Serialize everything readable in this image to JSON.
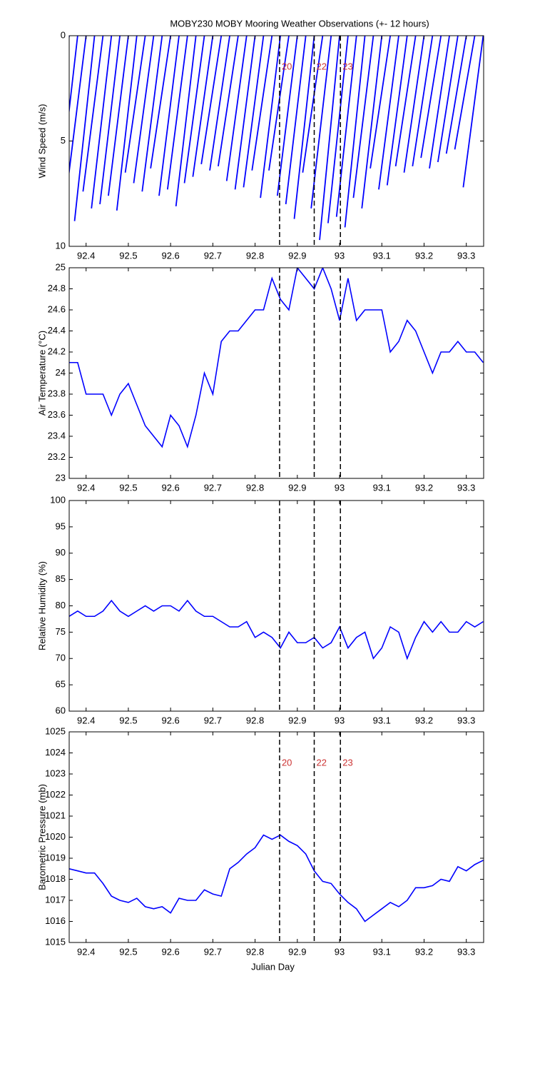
{
  "chart_data": [
    {
      "type": "stick",
      "title": "MOBY230 MOBY Mooring Weather Observations (+- 12 hours)",
      "ylabel": "Wind Speed (m/s)",
      "x": [
        92.36,
        92.38,
        92.4,
        92.42,
        92.44,
        92.46,
        92.48,
        92.5,
        92.52,
        92.54,
        92.56,
        92.58,
        92.6,
        92.62,
        92.64,
        92.66,
        92.68,
        92.7,
        92.72,
        92.74,
        92.76,
        92.78,
        92.8,
        92.82,
        92.84,
        92.86,
        92.88,
        92.9,
        92.92,
        92.94,
        92.96,
        92.98,
        93,
        93.02,
        93.04,
        93.06,
        93.08,
        93.1,
        93.12,
        93.14,
        93.16,
        93.18,
        93.2,
        93.22,
        93.24,
        93.26,
        93.28,
        93.3,
        93.32,
        93.34
      ],
      "values": [
        7.2,
        8.3,
        7.6,
        8.8,
        7.4,
        8.2,
        8.0,
        7.6,
        8.3,
        6.5,
        7.0,
        7.4,
        6.3,
        7.6,
        7.3,
        8.1,
        7.0,
        6.7,
        6.1,
        6.4,
        6.2,
        6.9,
        7.3,
        7.2,
        6.4,
        7.7,
        6.4,
        7.6,
        8.0,
        8.7,
        6.5,
        8.2,
        9.7,
        8.9,
        8.6,
        9.1,
        7.7,
        8.2,
        6.3,
        7.3,
        7.1,
        6.2,
        6.5,
        6.2,
        5.8,
        6.3,
        6.0,
        5.6,
        5.4,
        7.2
      ],
      "color": "#0000ff",
      "xlim": [
        92.36,
        93.341
      ],
      "xticks": [
        92.4,
        92.5,
        92.6,
        92.7,
        92.8,
        92.9,
        93,
        93.1,
        93.2,
        93.3
      ],
      "ylim": [
        0,
        10
      ],
      "yticks": [
        0,
        5,
        10
      ],
      "y_reversed": true,
      "vlines": [
        92.858,
        92.94,
        93.002
      ],
      "vline_labels": [
        "20",
        "22",
        "23"
      ],
      "vline_label_color": "#cc3333"
    },
    {
      "type": "line",
      "ylabel": "Air Temperature (°C)",
      "x": [
        92.36,
        92.38,
        92.4,
        92.42,
        92.44,
        92.46,
        92.48,
        92.5,
        92.52,
        92.54,
        92.56,
        92.58,
        92.6,
        92.62,
        92.64,
        92.66,
        92.68,
        92.7,
        92.72,
        92.74,
        92.76,
        92.78,
        92.8,
        92.82,
        92.84,
        92.86,
        92.88,
        92.9,
        92.92,
        92.94,
        92.96,
        92.98,
        93,
        93.02,
        93.04,
        93.06,
        93.08,
        93.1,
        93.12,
        93.14,
        93.16,
        93.18,
        93.2,
        93.22,
        93.24,
        93.26,
        93.28,
        93.3,
        93.32,
        93.34
      ],
      "values": [
        24.1,
        24.1,
        23.8,
        23.8,
        23.8,
        23.6,
        23.8,
        23.9,
        23.7,
        23.5,
        23.4,
        23.3,
        23.6,
        23.5,
        23.3,
        23.6,
        24.0,
        23.8,
        24.3,
        24.4,
        24.4,
        24.5,
        24.6,
        24.6,
        24.9,
        24.7,
        24.6,
        25.0,
        24.9,
        24.8,
        25.0,
        24.8,
        24.5,
        24.9,
        24.5,
        24.6,
        24.6,
        24.6,
        24.2,
        24.3,
        24.5,
        24.4,
        24.2,
        24.0,
        24.2,
        24.2,
        24.3,
        24.2,
        24.2,
        24.1
      ],
      "color": "#0000ff",
      "xlim": [
        92.36,
        93.341
      ],
      "xticks": [
        92.4,
        92.5,
        92.6,
        92.7,
        92.8,
        92.9,
        93,
        93.1,
        93.2,
        93.3
      ],
      "ylim": [
        23,
        25
      ],
      "yticks": [
        23,
        23.2,
        23.4,
        23.6,
        23.8,
        24,
        24.2,
        24.4,
        24.6,
        24.8,
        25
      ],
      "vlines": [
        92.858,
        92.94,
        93.002
      ]
    },
    {
      "type": "line",
      "ylabel": "Relative Humidity (%)",
      "x": [
        92.36,
        92.38,
        92.4,
        92.42,
        92.44,
        92.46,
        92.48,
        92.5,
        92.52,
        92.54,
        92.56,
        92.58,
        92.6,
        92.62,
        92.64,
        92.66,
        92.68,
        92.7,
        92.72,
        92.74,
        92.76,
        92.78,
        92.8,
        92.82,
        92.84,
        92.86,
        92.88,
        92.9,
        92.92,
        92.94,
        92.96,
        92.98,
        93,
        93.02,
        93.04,
        93.06,
        93.08,
        93.1,
        93.12,
        93.14,
        93.16,
        93.18,
        93.2,
        93.22,
        93.24,
        93.26,
        93.28,
        93.3,
        93.32,
        93.34
      ],
      "values": [
        78,
        79,
        78,
        78,
        79,
        81,
        79,
        78,
        79,
        80,
        79,
        80,
        80,
        79,
        81,
        79,
        78,
        78,
        77,
        76,
        76,
        77,
        74,
        75,
        74,
        72,
        75,
        73,
        73,
        74,
        72,
        73,
        76,
        72,
        74,
        75,
        70,
        72,
        76,
        75,
        70,
        74,
        77,
        75,
        77,
        75,
        75,
        77,
        76,
        77
      ],
      "color": "#0000ff",
      "xlim": [
        92.36,
        93.341
      ],
      "xticks": [
        92.4,
        92.5,
        92.6,
        92.7,
        92.8,
        92.9,
        93,
        93.1,
        93.2,
        93.3
      ],
      "ylim": [
        60,
        100
      ],
      "yticks": [
        60,
        65,
        70,
        75,
        80,
        85,
        90,
        95,
        100
      ],
      "vlines": [
        92.858,
        92.94,
        93.002
      ]
    },
    {
      "type": "line",
      "ylabel": "Barometric Pressure (mb)",
      "xlabel": "Julian Day",
      "x": [
        92.36,
        92.38,
        92.4,
        92.42,
        92.44,
        92.46,
        92.48,
        92.5,
        92.52,
        92.54,
        92.56,
        92.58,
        92.6,
        92.62,
        92.64,
        92.66,
        92.68,
        92.7,
        92.72,
        92.74,
        92.76,
        92.78,
        92.8,
        92.82,
        92.84,
        92.86,
        92.88,
        92.9,
        92.92,
        92.94,
        92.96,
        92.98,
        93,
        93.02,
        93.04,
        93.06,
        93.08,
        93.1,
        93.12,
        93.14,
        93.16,
        93.18,
        93.2,
        93.22,
        93.24,
        93.26,
        93.28,
        93.3,
        93.32,
        93.34
      ],
      "values": [
        1018.5,
        1018.4,
        1018.3,
        1018.3,
        1017.8,
        1017.2,
        1017.0,
        1016.9,
        1017.1,
        1016.7,
        1016.6,
        1016.7,
        1016.4,
        1017.1,
        1017.0,
        1017.0,
        1017.5,
        1017.3,
        1017.2,
        1018.5,
        1018.8,
        1019.2,
        1019.5,
        1020.1,
        1019.9,
        1020.1,
        1019.8,
        1019.6,
        1019.2,
        1018.4,
        1017.9,
        1017.8,
        1017.3,
        1016.9,
        1016.6,
        1016.0,
        1016.3,
        1016.6,
        1016.9,
        1016.7,
        1017.0,
        1017.6,
        1017.6,
        1017.7,
        1018.0,
        1017.9,
        1018.6,
        1018.4,
        1018.7,
        1018.9
      ],
      "color": "#0000ff",
      "xlim": [
        92.36,
        93.341
      ],
      "xticks": [
        92.4,
        92.5,
        92.6,
        92.7,
        92.8,
        92.9,
        93,
        93.1,
        93.2,
        93.3
      ],
      "ylim": [
        1015,
        1025
      ],
      "yticks": [
        1015,
        1016,
        1017,
        1018,
        1019,
        1020,
        1021,
        1022,
        1023,
        1024,
        1025
      ],
      "vlines": [
        92.858,
        92.94,
        93.002
      ],
      "vline_labels": [
        "20",
        "22",
        "23"
      ],
      "vline_label_color": "#cc3333"
    }
  ]
}
